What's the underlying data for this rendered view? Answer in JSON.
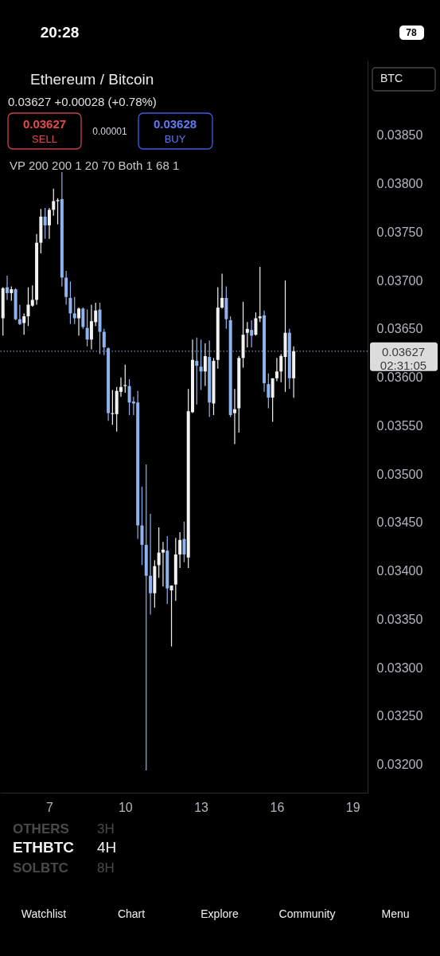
{
  "chart_data": {
    "type": "candlestick",
    "title": "Ethereum / Bitcoin",
    "subtitle": "0.03627 +0.00028 (+0.78%)",
    "x": [
      5.1667,
      5.3333,
      5.5,
      5.6667,
      5.8333,
      6,
      6.1667,
      6.3333,
      6.5,
      6.6667,
      6.8333,
      7,
      7.1667,
      7.3333,
      7.5,
      7.6667,
      7.8333,
      8,
      8.1667,
      8.3333,
      8.5,
      8.6667,
      8.8333,
      9,
      9.1667,
      9.3333,
      9.5,
      9.6667,
      9.8333,
      10,
      10.1667,
      10.3333,
      10.5,
      10.6667,
      10.8333,
      11,
      11.1667,
      11.3333,
      11.5,
      11.6667,
      11.8333,
      12,
      12.1667,
      12.3333,
      12.5,
      12.6667,
      12.8333,
      13,
      13.1667,
      13.3333,
      13.5,
      13.6667,
      13.8333,
      14,
      14.1667,
      14.3333,
      14.5,
      14.6667,
      14.8333,
      15,
      15.1667,
      15.3333,
      15.5,
      15.6667,
      15.8333,
      16,
      16.1667,
      16.3333,
      16.5,
      16.6667
    ],
    "ohlc": [
      [
        0.03661,
        0.03693,
        0.03643,
        0.03692
      ],
      [
        0.03693,
        0.03705,
        0.0368,
        0.03687
      ],
      [
        0.03687,
        0.03694,
        0.03679,
        0.03691
      ],
      [
        0.03691,
        0.03692,
        0.03659,
        0.0366
      ],
      [
        0.0366,
        0.03675,
        0.03654,
        0.03655
      ],
      [
        0.03656,
        0.03666,
        0.03644,
        0.03663
      ],
      [
        0.03663,
        0.03693,
        0.03653,
        0.03675
      ],
      [
        0.03674,
        0.03695,
        0.03673,
        0.0368
      ],
      [
        0.0368,
        0.03748,
        0.03675,
        0.03739
      ],
      [
        0.03739,
        0.03774,
        0.03728,
        0.03766
      ],
      [
        0.03766,
        0.03775,
        0.03743,
        0.03757
      ],
      [
        0.03757,
        0.03775,
        0.03743,
        0.03773
      ],
      [
        0.03773,
        0.03795,
        0.03767,
        0.03782
      ],
      [
        0.03782,
        0.03785,
        0.03758,
        0.03783
      ],
      [
        0.03784,
        0.03812,
        0.03694,
        0.03703
      ],
      [
        0.03703,
        0.0371,
        0.03675,
        0.03683
      ],
      [
        0.03682,
        0.03699,
        0.03655,
        0.03666
      ],
      [
        0.03666,
        0.03683,
        0.03655,
        0.03661
      ],
      [
        0.03661,
        0.03672,
        0.03643,
        0.03671
      ],
      [
        0.03671,
        0.03672,
        0.0365,
        0.03652
      ],
      [
        0.03651,
        0.0367,
        0.03632,
        0.03639
      ],
      [
        0.03639,
        0.03675,
        0.03629,
        0.03658
      ],
      [
        0.03657,
        0.03677,
        0.03653,
        0.03669
      ],
      [
        0.0367,
        0.03677,
        0.03624,
        0.03647
      ],
      [
        0.03647,
        0.0365,
        0.03623,
        0.03631
      ],
      [
        0.0363,
        0.03631,
        0.03555,
        0.03563
      ],
      [
        0.03562,
        0.03587,
        0.03551,
        0.03563
      ],
      [
        0.03562,
        0.0359,
        0.03544,
        0.03586
      ],
      [
        0.03585,
        0.036,
        0.0358,
        0.0359
      ],
      [
        0.03591,
        0.03613,
        0.03584,
        0.03592
      ],
      [
        0.03591,
        0.03598,
        0.03561,
        0.03574
      ],
      [
        0.03575,
        0.0358,
        0.03561,
        0.03573
      ],
      [
        0.03574,
        0.03586,
        0.03433,
        0.03447
      ],
      [
        0.03447,
        0.03487,
        0.03406,
        0.03427
      ],
      [
        0.03427,
        0.0351,
        0.03194,
        0.03395
      ],
      [
        0.03395,
        0.03459,
        0.03355,
        0.03377
      ],
      [
        0.03377,
        0.03411,
        0.03362,
        0.03405
      ],
      [
        0.03406,
        0.03445,
        0.03393,
        0.03419
      ],
      [
        0.03419,
        0.0343,
        0.03384,
        0.03422
      ],
      [
        0.03421,
        0.03436,
        0.03366,
        0.03382
      ],
      [
        0.0338,
        0.03385,
        0.03322,
        0.03385
      ],
      [
        0.03386,
        0.03434,
        0.03369,
        0.03417
      ],
      [
        0.03417,
        0.0344,
        0.03403,
        0.03432
      ],
      [
        0.03433,
        0.03451,
        0.03409,
        0.03417
      ],
      [
        0.03414,
        0.03588,
        0.03403,
        0.03565
      ],
      [
        0.03564,
        0.03639,
        0.03563,
        0.03618
      ],
      [
        0.03617,
        0.03641,
        0.03572,
        0.03612
      ],
      [
        0.03611,
        0.03639,
        0.03587,
        0.03606
      ],
      [
        0.03606,
        0.03635,
        0.03591,
        0.03622
      ],
      [
        0.03621,
        0.03638,
        0.03559,
        0.03574
      ],
      [
        0.03573,
        0.0362,
        0.03561,
        0.03617
      ],
      [
        0.03618,
        0.03693,
        0.03609,
        0.03672
      ],
      [
        0.03672,
        0.03707,
        0.03671,
        0.03682
      ],
      [
        0.03682,
        0.03694,
        0.0365,
        0.0366
      ],
      [
        0.03659,
        0.03663,
        0.03559,
        0.03561
      ],
      [
        0.03563,
        0.03588,
        0.03531,
        0.03567
      ],
      [
        0.03568,
        0.03622,
        0.03543,
        0.0362
      ],
      [
        0.0362,
        0.03678,
        0.0361,
        0.03644
      ],
      [
        0.03646,
        0.03657,
        0.03631,
        0.0365
      ],
      [
        0.03649,
        0.03659,
        0.03631,
        0.03643
      ],
      [
        0.03644,
        0.03667,
        0.03643,
        0.03661
      ],
      [
        0.03661,
        0.03714,
        0.03657,
        0.03663
      ],
      [
        0.03664,
        0.03669,
        0.03585,
        0.03594
      ],
      [
        0.03593,
        0.03604,
        0.03568,
        0.03579
      ],
      [
        0.03579,
        0.03599,
        0.03554,
        0.03599
      ],
      [
        0.03599,
        0.0362,
        0.03596,
        0.03606
      ],
      [
        0.03606,
        0.03624,
        0.03595,
        0.03622
      ],
      [
        0.03621,
        0.037,
        0.03585,
        0.03646
      ],
      [
        0.03646,
        0.0365,
        0.03588,
        0.03599
      ],
      [
        0.03599,
        0.03632,
        0.03579,
        0.03627
      ]
    ],
    "colors": [
      "#f2f2f2",
      "#8fb3ef",
      "#f2f2f2",
      "#8fb3ef",
      "#8fb3ef",
      "#f2f2f2",
      "#f2f2f2",
      "#f2f2f2",
      "#f2f2f2",
      "#f2f2f2",
      "#8fb3ef",
      "#f2f2f2",
      "#f2f2f2",
      "#f2f2f2",
      "#8fb3ef",
      "#8fb3ef",
      "#8fb3ef",
      "#8fb3ef",
      "#f2f2f2",
      "#8fb3ef",
      "#8fb3ef",
      "#f2f2f2",
      "#f2f2f2",
      "#8fb3ef",
      "#8fb3ef",
      "#8fb3ef",
      "#f2f2f2",
      "#f2f2f2",
      "#f2f2f2",
      "#f2f2f2",
      "#8fb3ef",
      "#8fb3ef",
      "#8fb3ef",
      "#8fb3ef",
      "#8fb3ef",
      "#8fb3ef",
      "#f2f2f2",
      "#f2f2f2",
      "#f2f2f2",
      "#8fb3ef",
      "#f2f2f2",
      "#f2f2f2",
      "#f2f2f2",
      "#8fb3ef",
      "#f2f2f2",
      "#f2f2f2",
      "#8fb3ef",
      "#8fb3ef",
      "#f2f2f2",
      "#8fb3ef",
      "#f2f2f2",
      "#f2f2f2",
      "#f2f2f2",
      "#8fb3ef",
      "#8fb3ef",
      "#f2f2f2",
      "#f2f2f2",
      "#f2f2f2",
      "#f2f2f2",
      "#8fb3ef",
      "#f2f2f2",
      "#f2f2f2",
      "#8fb3ef",
      "#8fb3ef",
      "#f2f2f2",
      "#f2f2f2",
      "#f2f2f2",
      "#f2f2f2",
      "#8fb3ef",
      "#f2f2f2"
    ],
    "xlim": [
      5.05,
      19.59
    ],
    "xticks": [
      7,
      10,
      13,
      16,
      19
    ],
    "ylim": [
      0.03171,
      0.03928
    ],
    "yticks": [
      {
        "value": 0.032,
        "label": "0.03200"
      },
      {
        "value": 0.0325,
        "label": "0.03250"
      },
      {
        "value": 0.033,
        "label": "0.03300"
      },
      {
        "value": 0.0335,
        "label": "0.03350"
      },
      {
        "value": 0.034,
        "label": "0.03400"
      },
      {
        "value": 0.0345,
        "label": "0.03450"
      },
      {
        "value": 0.035,
        "label": "0.03500"
      },
      {
        "value": 0.0355,
        "label": "0.03550"
      },
      {
        "value": 0.036,
        "label": "0.03600"
      },
      {
        "value": 0.0365,
        "label": "0.03650"
      },
      {
        "value": 0.037,
        "label": "0.03700"
      },
      {
        "value": 0.0375,
        "label": "0.03750"
      },
      {
        "value": 0.038,
        "label": "0.03800"
      },
      {
        "value": 0.0385,
        "label": "0.03850"
      }
    ],
    "ref_lines": [
      {
        "axis": "y",
        "value": 0.03627,
        "label": "0.03627",
        "color": "#8b7fd6",
        "line_style": "dotted"
      }
    ],
    "annotations": [
      "20:28",
      "78",
      "0.03627",
      "SELL",
      "0.00001",
      "0.03628",
      "BUY",
      "VP 200 200 1 20 70 Both 1 68 1",
      "BTC",
      "02:31:05",
      "OTHERS",
      "3H",
      "ETHBTC",
      "4H",
      "SOLBTC",
      "8H",
      "Watchlist",
      "Chart",
      "Explore",
      "Community",
      "Menu"
    ]
  }
}
